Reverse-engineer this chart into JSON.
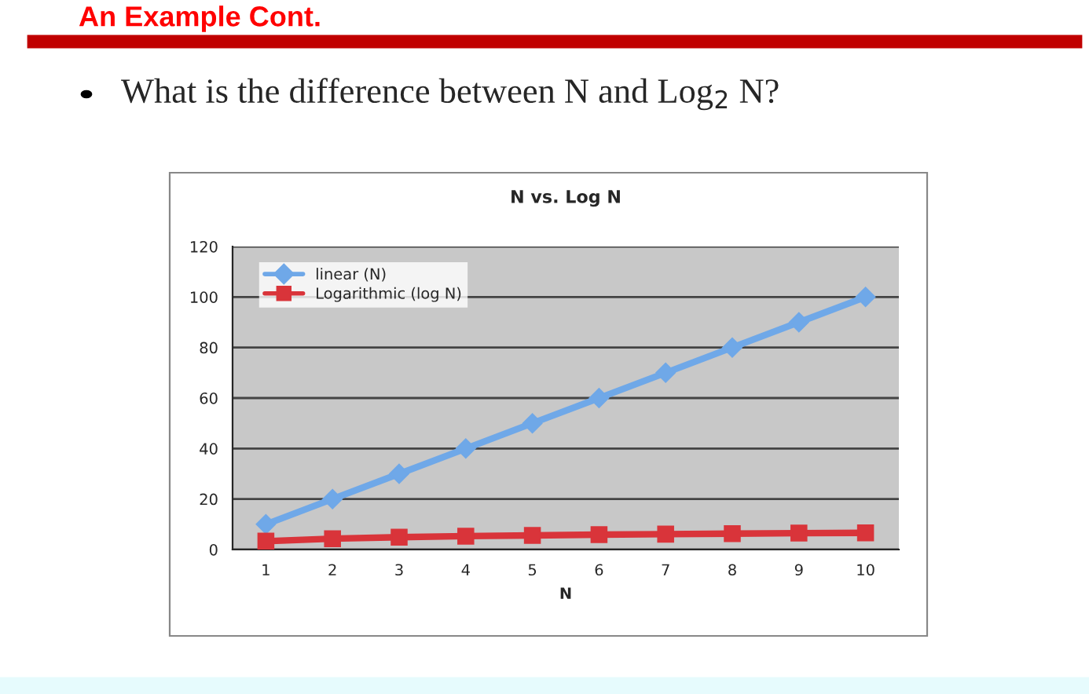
{
  "chart_data": {
    "type": "line",
    "title": "N vs. Log N",
    "xlabel": "N",
    "annotations": [
      "An Example Cont.",
      "What is the difference between N and Log$_{2}$ N?"
    ],
    "categories": [
      "1",
      "2",
      "3",
      "4",
      "5",
      "6",
      "7",
      "8",
      "9",
      "10"
    ],
    "series": [
      {
        "name": "linear (N)",
        "color": "#6fa8e8",
        "marker": "diamond",
        "values": [
          10,
          20,
          30,
          40,
          50,
          60,
          70,
          80,
          90,
          100
        ]
      },
      {
        "name": "Logarithmic (log N)",
        "color": "#d9343a",
        "marker": "square",
        "values": [
          3.3,
          4.3,
          4.9,
          5.3,
          5.6,
          5.9,
          6.1,
          6.3,
          6.5,
          6.6
        ]
      }
    ],
    "ylim": [
      0,
      120
    ],
    "yticks": [
      0,
      20,
      40,
      60,
      80,
      100,
      120
    ],
    "grid": "y",
    "legend": "top left",
    "line_style": "solid"
  }
}
